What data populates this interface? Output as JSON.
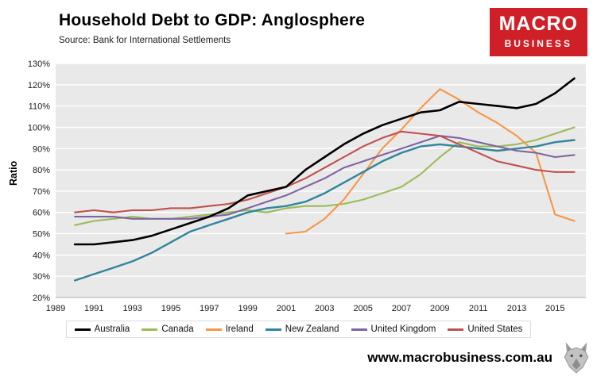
{
  "header": {
    "title": "Household Debt to GDP: Anglosphere",
    "subtitle": "Source: Bank for International Settlements",
    "logo": {
      "line1": "MACRO",
      "line2": "BUSINESS",
      "bg_color": "#d02027",
      "text_color": "#ffffff"
    }
  },
  "chart_data": {
    "type": "line",
    "title": "Household Debt to GDP: Anglosphere",
    "xlabel": "",
    "ylabel": "Ratio",
    "ylim": [
      20,
      130
    ],
    "y_tick_step": 10,
    "y_tick_suffix": "%",
    "xlim": [
      1989,
      2016.6
    ],
    "x_ticks": [
      1989,
      1991,
      1993,
      1995,
      1997,
      1999,
      2001,
      2003,
      2005,
      2007,
      2009,
      2011,
      2013,
      2015
    ],
    "grid": "horizontal white gridlines on light gray plot background",
    "plot_bg": "#e9e9e9",
    "gridline_color": "#ffffff",
    "legend_position": "bottom",
    "series": [
      {
        "name": "Australia",
        "color": "#000000",
        "width": 2.6,
        "z": 1,
        "x": [
          1990,
          1991,
          1992,
          1993,
          1994,
          1995,
          1996,
          1997,
          1998,
          1999,
          2000,
          2001,
          2002,
          2003,
          2004,
          2005,
          2006,
          2007,
          2008,
          2009,
          2010,
          2011,
          2012,
          2013,
          2014,
          2015,
          2016
        ],
        "values": [
          45,
          45,
          46,
          47,
          49,
          52,
          55,
          58,
          62,
          68,
          70,
          72,
          80,
          86,
          92,
          97,
          101,
          104,
          107,
          108,
          112,
          111,
          110,
          109,
          111,
          116,
          123
        ]
      },
      {
        "name": "Canada",
        "color": "#9bbb59",
        "width": 2.1,
        "z": 0,
        "x": [
          1990,
          1991,
          1992,
          1993,
          1994,
          1995,
          1996,
          1997,
          1998,
          1999,
          2000,
          2001,
          2002,
          2003,
          2004,
          2005,
          2006,
          2007,
          2008,
          2009,
          2010,
          2011,
          2012,
          2013,
          2014,
          2015,
          2016
        ],
        "values": [
          54,
          56,
          57,
          58,
          57,
          57,
          58,
          59,
          60,
          61,
          60,
          62,
          63,
          63,
          64,
          66,
          69,
          72,
          78,
          86,
          93,
          91,
          91,
          92,
          94,
          97,
          100
        ]
      },
      {
        "name": "Ireland",
        "color": "#f79646",
        "width": 2.1,
        "z": 0,
        "x": [
          2001,
          2002,
          2003,
          2004,
          2005,
          2006,
          2007,
          2008,
          2009,
          2010,
          2011,
          2012,
          2013,
          2014,
          2015,
          2016
        ],
        "values": [
          50,
          51,
          57,
          66,
          78,
          90,
          99,
          109,
          118,
          113,
          107,
          102,
          96,
          88,
          59,
          56
        ]
      },
      {
        "name": "New Zealand",
        "color": "#31859c",
        "width": 2.4,
        "z": 0,
        "x": [
          1990,
          1991,
          1992,
          1993,
          1994,
          1995,
          1996,
          1997,
          1998,
          1999,
          2000,
          2001,
          2002,
          2003,
          2004,
          2005,
          2006,
          2007,
          2008,
          2009,
          2010,
          2011,
          2012,
          2013,
          2014,
          2015,
          2016
        ],
        "values": [
          28,
          31,
          34,
          37,
          41,
          46,
          51,
          54,
          57,
          60,
          62,
          63,
          65,
          69,
          74,
          79,
          84,
          88,
          91,
          92,
          91,
          90,
          89,
          90,
          91,
          93,
          94
        ]
      },
      {
        "name": "United Kingdom",
        "color": "#8064a2",
        "width": 2.1,
        "z": 0,
        "x": [
          1990,
          1991,
          1992,
          1993,
          1994,
          1995,
          1996,
          1997,
          1998,
          1999,
          2000,
          2001,
          2002,
          2003,
          2004,
          2005,
          2006,
          2007,
          2008,
          2009,
          2010,
          2011,
          2012,
          2013,
          2014,
          2015,
          2016
        ],
        "values": [
          58,
          58,
          58,
          57,
          57,
          57,
          57,
          58,
          59,
          62,
          65,
          68,
          72,
          76,
          81,
          84,
          87,
          90,
          93,
          96,
          95,
          93,
          91,
          89,
          88,
          86,
          87
        ]
      },
      {
        "name": "United States",
        "color": "#c0504d",
        "width": 2.1,
        "z": 0,
        "x": [
          1990,
          1991,
          1992,
          1993,
          1994,
          1995,
          1996,
          1997,
          1998,
          1999,
          2000,
          2001,
          2002,
          2003,
          2004,
          2005,
          2006,
          2007,
          2008,
          2009,
          2010,
          2011,
          2012,
          2013,
          2014,
          2015,
          2016
        ],
        "values": [
          60,
          61,
          60,
          61,
          61,
          62,
          62,
          63,
          64,
          66,
          69,
          72,
          76,
          81,
          86,
          91,
          95,
          98,
          97,
          96,
          92,
          88,
          84,
          82,
          80,
          79,
          79
        ]
      }
    ]
  },
  "footer": {
    "website": "www.macrobusiness.com.au"
  }
}
